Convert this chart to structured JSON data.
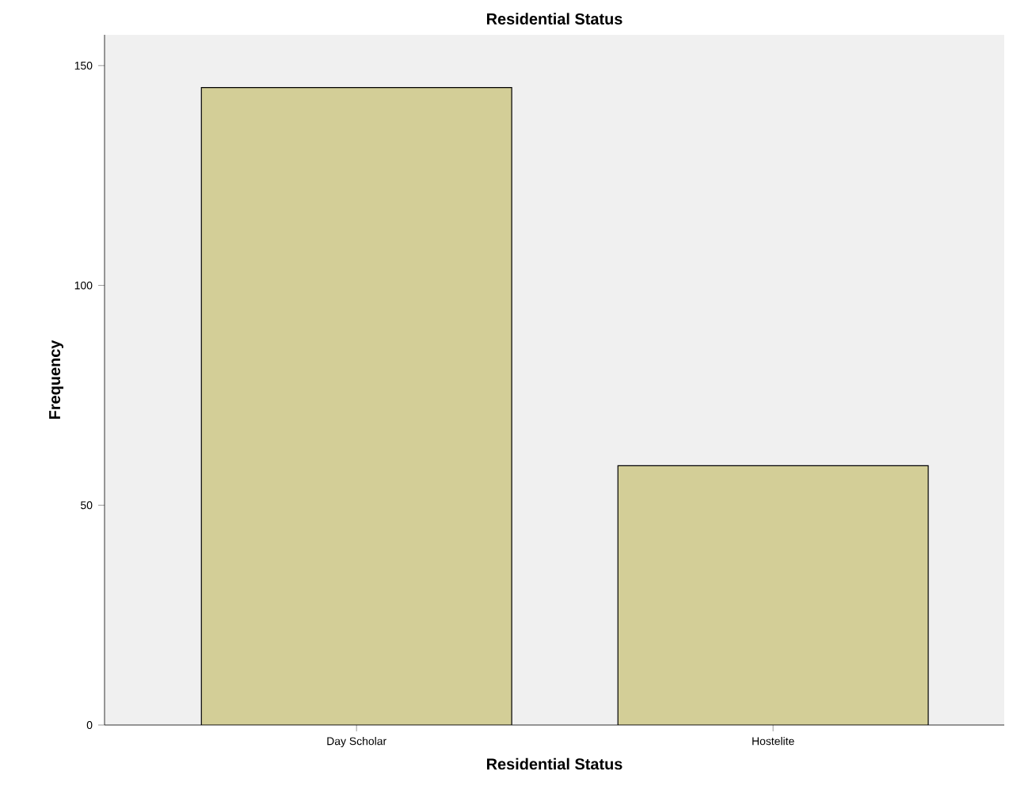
{
  "chart_data": {
    "type": "bar",
    "title": "Residential Status",
    "xlabel": "Residential Status",
    "ylabel": "Frequency",
    "categories": [
      "Day Scholar",
      "Hostelite"
    ],
    "values": [
      145,
      59
    ],
    "color": "#d3ce97",
    "ylim": [
      0,
      157
    ],
    "yticks": [
      0,
      50,
      100,
      150
    ]
  }
}
